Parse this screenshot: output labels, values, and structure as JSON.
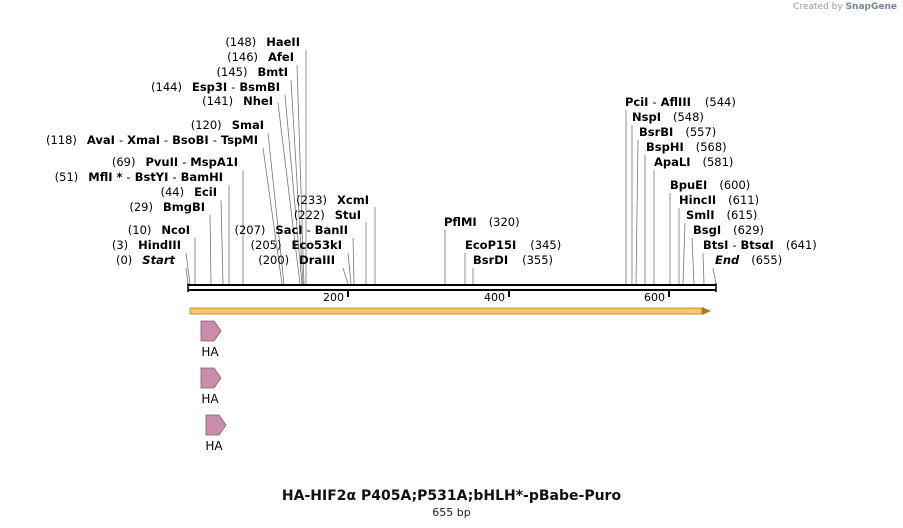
{
  "credit": {
    "prefix": "Created by",
    "brand": "SnapGene"
  },
  "map": {
    "title": "HA-HIF2α P405A;P531A;bHLH*-pBabe-Puro",
    "length_label": "655 bp",
    "length": 655,
    "scale_ticks": [
      "200",
      "400",
      "600"
    ],
    "ends": {
      "start": "Start",
      "end": "End"
    },
    "sites": [
      {
        "pos": "(0)",
        "names": [
          "Start"
        ]
      },
      {
        "pos": "(3)",
        "names": [
          "HindIII"
        ]
      },
      {
        "pos": "(10)",
        "names": [
          "NcoI"
        ]
      },
      {
        "pos": "(29)",
        "names": [
          "BmgBI"
        ]
      },
      {
        "pos": "(44)",
        "names": [
          "EciI"
        ]
      },
      {
        "pos": "(51)",
        "names": [
          "MflI *",
          "BstYI",
          "BamHI"
        ]
      },
      {
        "pos": "(69)",
        "names": [
          "PvuII",
          "MspA1I"
        ]
      },
      {
        "pos": "(118)",
        "names": [
          "AvaI",
          "XmaI",
          "BsoBI",
          "TspMI"
        ]
      },
      {
        "pos": "(120)",
        "names": [
          "SmaI"
        ]
      },
      {
        "pos": "(141)",
        "names": [
          "NheI"
        ]
      },
      {
        "pos": "(144)",
        "names": [
          "Esp3I",
          "BsmBI"
        ]
      },
      {
        "pos": "(145)",
        "names": [
          "BmtI"
        ]
      },
      {
        "pos": "(146)",
        "names": [
          "AfeI"
        ]
      },
      {
        "pos": "(148)",
        "names": [
          "HaeII"
        ]
      },
      {
        "pos": "(200)",
        "names": [
          "DraIII"
        ]
      },
      {
        "pos": "(205)",
        "names": [
          "Eco53kI"
        ]
      },
      {
        "pos": "(207)",
        "names": [
          "SacI",
          "BanII"
        ]
      },
      {
        "pos": "(222)",
        "names": [
          "StuI"
        ]
      },
      {
        "pos": "(233)",
        "names": [
          "XcmI"
        ]
      },
      {
        "pos": "(320)",
        "names": [
          "PflMI"
        ]
      },
      {
        "pos": "(345)",
        "names": [
          "EcoP15I"
        ]
      },
      {
        "pos": "(355)",
        "names": [
          "BsrDI"
        ]
      },
      {
        "pos": "(544)",
        "names": [
          "PciI",
          "AflIII"
        ]
      },
      {
        "pos": "(548)",
        "names": [
          "NspI"
        ]
      },
      {
        "pos": "(557)",
        "names": [
          "BsrBI"
        ]
      },
      {
        "pos": "(568)",
        "names": [
          "BspHI"
        ]
      },
      {
        "pos": "(581)",
        "names": [
          "ApaLI"
        ]
      },
      {
        "pos": "(600)",
        "names": [
          "BpuEI"
        ]
      },
      {
        "pos": "(611)",
        "names": [
          "HincII"
        ]
      },
      {
        "pos": "(615)",
        "names": [
          "SmlI"
        ]
      },
      {
        "pos": "(629)",
        "names": [
          "BsgI"
        ]
      },
      {
        "pos": "(641)",
        "names": [
          "BtsI",
          "BtsαI"
        ]
      },
      {
        "pos": "(655)",
        "names": [
          "End"
        ]
      }
    ],
    "features": [
      {
        "label": "HA"
      },
      {
        "label": "HA"
      },
      {
        "label": "HA"
      }
    ],
    "colors": {
      "orf_fill": "#f5c86b",
      "orf_stroke": "#b07a10",
      "feature_fill": "#c98cab",
      "feature_stroke": "#8a5a74"
    }
  }
}
